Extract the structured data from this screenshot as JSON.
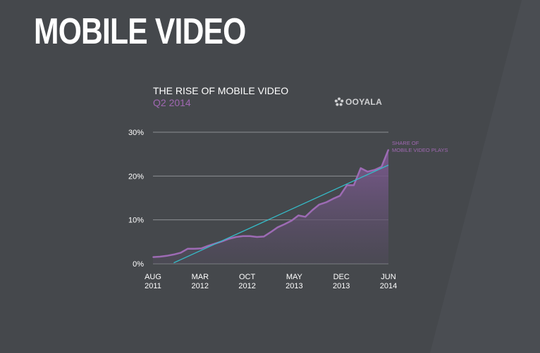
{
  "slide": {
    "title": "MOBILE VIDEO"
  },
  "brand": {
    "name": "OOYALA",
    "logo_icon": "flower-icon"
  },
  "colors": {
    "background": "#45484c",
    "series_line": "#9d6bb4",
    "trend_line": "#35bcc8",
    "grid": "#8d9094",
    "text": "#ffffff",
    "subtitle": "#a068b2"
  },
  "chart_data": {
    "type": "area",
    "title": "THE RISE OF MOBILE VIDEO",
    "subtitle": "Q2 2014",
    "xlabel": "",
    "ylabel": "",
    "ylim": [
      0,
      30
    ],
    "grid": true,
    "y_ticks": [
      "0%",
      "10%",
      "20%",
      "30%"
    ],
    "x_ticks": [
      {
        "month": "AUG",
        "year": "2011"
      },
      {
        "month": "MAR",
        "year": "2012"
      },
      {
        "month": "OCT",
        "year": "2012"
      },
      {
        "month": "MAY",
        "year": "2013"
      },
      {
        "month": "DEC",
        "year": "2013"
      },
      {
        "month": "JUN",
        "year": "2014"
      }
    ],
    "x": [
      "2011-08",
      "2011-09",
      "2011-10",
      "2011-11",
      "2011-12",
      "2012-01",
      "2012-02",
      "2012-03",
      "2012-04",
      "2012-05",
      "2012-06",
      "2012-07",
      "2012-08",
      "2012-09",
      "2012-10",
      "2012-11",
      "2012-12",
      "2013-01",
      "2013-02",
      "2013-03",
      "2013-04",
      "2013-05",
      "2013-06",
      "2013-07",
      "2013-08",
      "2013-09",
      "2013-10",
      "2013-11",
      "2013-12",
      "2014-01",
      "2014-02",
      "2014-03",
      "2014-04",
      "2014-05",
      "2014-06"
    ],
    "series": [
      {
        "name": "SHARE OF MOBILE VIDEO PLAYS",
        "values": [
          1.5,
          1.6,
          1.8,
          2.1,
          2.5,
          3.4,
          3.4,
          3.5,
          4.1,
          4.6,
          5.1,
          5.7,
          6.1,
          6.3,
          6.3,
          6.1,
          6.2,
          7.2,
          8.3,
          9.0,
          9.8,
          11.0,
          10.7,
          12.2,
          13.5,
          14.0,
          14.8,
          15.5,
          17.9,
          17.9,
          21.8,
          21.0,
          21.4,
          22.1,
          26.0
        ]
      }
    ],
    "trend_line": {
      "start": {
        "x": "2011-11",
        "y": 0.2
      },
      "end": {
        "x": "2014-06",
        "y": 22.5
      }
    },
    "annotations": [
      {
        "text": "SHARE OF",
        "series": "SHARE OF MOBILE VIDEO PLAYS"
      },
      {
        "text": "MOBILE VIDEO PLAYS",
        "series": "SHARE OF MOBILE VIDEO PLAYS"
      }
    ]
  }
}
